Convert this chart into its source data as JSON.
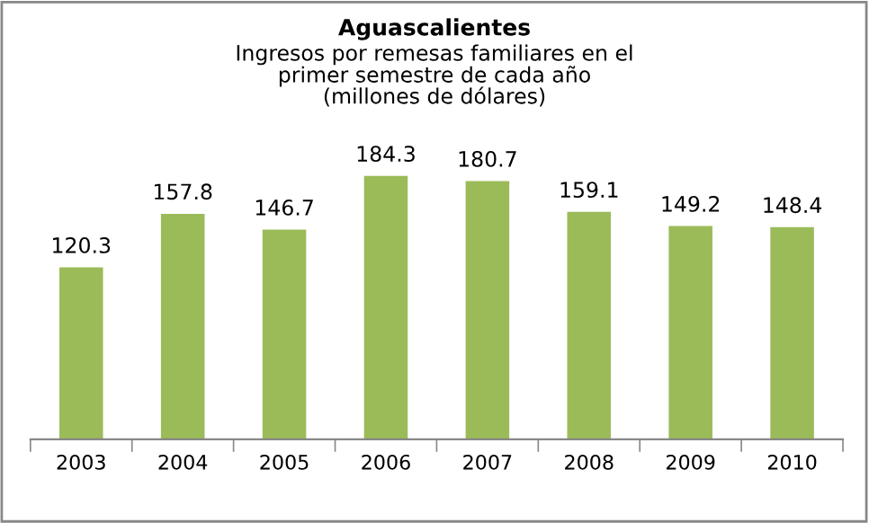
{
  "chart_data": {
    "type": "bar",
    "title": "Aguascalientes",
    "subtitle": "Ingresos por remesas familiares en el\nprimer semestre de cada año\n(millones de dólares)",
    "categories": [
      "2003",
      "2004",
      "2005",
      "2006",
      "2007",
      "2008",
      "2009",
      "2010"
    ],
    "values": [
      120.3,
      157.8,
      146.7,
      184.3,
      180.7,
      159.1,
      149.2,
      148.4
    ],
    "color": "#9bbb59",
    "data_labels": true,
    "grid": false,
    "legend": false,
    "tick_labels": "x"
  }
}
